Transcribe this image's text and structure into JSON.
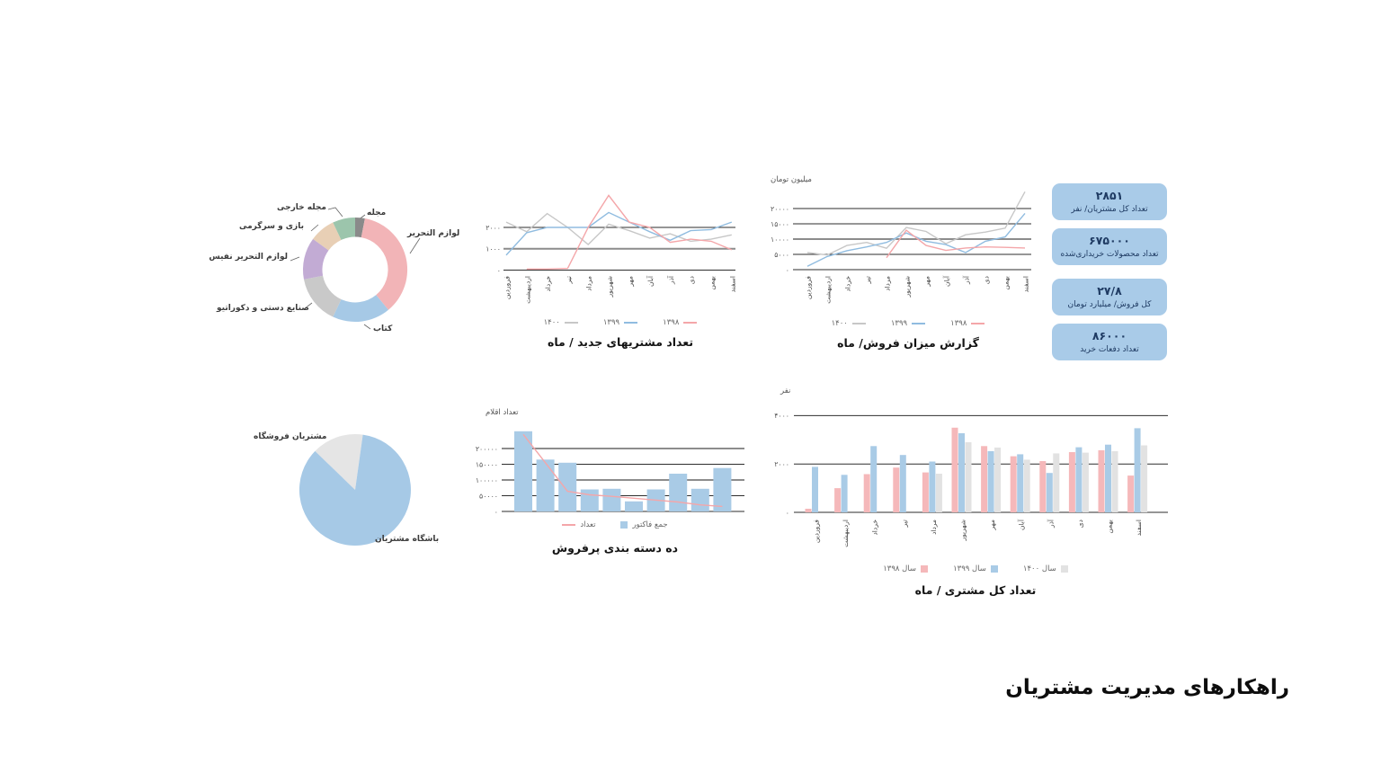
{
  "page": {
    "title": "راهکارهای مدیریت مشتریان"
  },
  "colors": {
    "grid": "#2e2e2e",
    "grid_soft": "#8c8c8c",
    "card_bg": "#a9cbe8",
    "card_text": "#1f3b63",
    "axis_text": "#555555"
  },
  "stat_cards": [
    {
      "value": "۲۸۵۱",
      "label": "تعداد کل مشتریان/ نفر"
    },
    {
      "value": "۶۷۵۰۰۰",
      "label": "تعداد محصولات خریداری‌شده"
    },
    {
      "value": "۲۷/۸",
      "label": "کل فروش/ میلیارد تومان"
    },
    {
      "value": "۸۶۰۰۰",
      "label": "تعداد دفعات خرید"
    }
  ],
  "chart_data": [
    {
      "id": "product-categories-donut",
      "type": "pie",
      "style": "donut",
      "labels": [
        "مجله",
        "لوازم التحریر",
        "کتاب",
        "صنایع دستی و دکوراتیو",
        "لوازم التحریر نفیس",
        "بازی و سرگرمی",
        "مجله خارجی"
      ],
      "values": [
        3,
        36,
        18,
        15,
        13,
        8,
        7
      ],
      "colors": [
        "#8a8a8a",
        "#f2b4b7",
        "#a6c9e6",
        "#c9c9c9",
        "#c2abd4",
        "#e8cfb5",
        "#9cc5ac"
      ],
      "start_angle": 0
    },
    {
      "id": "new-customers-per-month",
      "type": "line",
      "title": "تعداد مشتریهای جدید / ماه",
      "categories": [
        "فروردین",
        "اردیبهشت",
        "خرداد",
        "تیر",
        "مرداد",
        "شهریور",
        "مهر",
        "آبان",
        "آذر",
        "دی",
        "بهمن",
        "اسفند"
      ],
      "yticks": {
        "values": [
          0,
          1000,
          2000
        ],
        "labels": [
          "۰",
          "۱۰۰۰",
          "۲۰۰۰"
        ]
      },
      "ylim": [
        0,
        4000
      ],
      "series": [
        {
          "name": "۱۴۰۰",
          "color": "#c7c7c7",
          "values": [
            2250,
            1800,
            2650,
            2000,
            1200,
            2150,
            1850,
            1500,
            1700,
            1350,
            1450,
            1650
          ]
        },
        {
          "name": "۱۳۹۹",
          "color": "#90bce0",
          "values": [
            700,
            1750,
            2000,
            2000,
            2000,
            2700,
            2250,
            1800,
            1400,
            1850,
            1900,
            2250
          ]
        },
        {
          "name": "۱۳۹۸",
          "color": "#f4a6a9",
          "values": [
            null,
            50,
            50,
            80,
            2000,
            3500,
            2250,
            2000,
            1300,
            1450,
            1350,
            950
          ]
        }
      ]
    },
    {
      "id": "sales-per-month",
      "type": "line",
      "title": "گزارش میزان فروش/ ماه",
      "ylabel": "میلیون تومان",
      "categories": [
        "فروردین",
        "اردیبهشت",
        "خرداد",
        "تیر",
        "مرداد",
        "شهریور",
        "مهر",
        "آبان",
        "آذر",
        "دی",
        "بهمن",
        "اسفند"
      ],
      "yticks": {
        "values": [
          0,
          5000,
          10000,
          15000,
          20000
        ],
        "labels": [
          "۰",
          "۵۰۰۰",
          "۱۰۰۰۰",
          "۱۵۰۰۰",
          "۲۰۰۰۰"
        ]
      },
      "ylim": [
        0,
        27000
      ],
      "series": [
        {
          "name": "۱۴۰۰",
          "color": "#c7c7c7",
          "values": [
            5600,
            4800,
            7900,
            8900,
            7000,
            13800,
            12500,
            8500,
            11400,
            12300,
            13600,
            25500
          ]
        },
        {
          "name": "۱۳۹۹",
          "color": "#90bce0",
          "values": [
            1100,
            4300,
            6200,
            7450,
            8900,
            12000,
            9300,
            8200,
            5600,
            9300,
            10700,
            18400
          ]
        },
        {
          "name": "۱۳۹۸",
          "color": "#f4a6a9",
          "values": [
            null,
            null,
            null,
            null,
            3900,
            12900,
            7900,
            6300,
            7100,
            7450,
            7300,
            7100
          ]
        }
      ]
    },
    {
      "id": "customer-split-pie",
      "type": "pie",
      "labels": [
        "مشتریان فروشگاه",
        "باشگاه مشتریان"
      ],
      "values": [
        15,
        85
      ],
      "colors": [
        "#e5e5e5",
        "#a6c9e6"
      ],
      "start_angle": -46
    },
    {
      "id": "top-ten-categories",
      "type": "bar-line",
      "title": "ده دسته بندی پرفروش",
      "ylabel": "تعداد اقلام",
      "yticks": {
        "values": [
          0,
          50000,
          100000,
          150000,
          200000
        ],
        "labels": [
          "۰",
          "۵۰۰۰۰",
          "۱۰۰۰۰۰",
          "۱۵۰۰۰۰",
          "۲۰۰۰۰۰"
        ]
      },
      "ylim": [
        0,
        290000
      ],
      "bar_series": {
        "name": "جمع فاکتور",
        "color": "#a9cbe6",
        "values": [
          255000,
          165000,
          155000,
          70000,
          72000,
          32000,
          70000,
          120000,
          72000,
          138000
        ]
      },
      "line_series": {
        "name": "تعداد",
        "color": "#f4a6a9",
        "values": [
          245000,
          155000,
          64000,
          53000,
          48000,
          42000,
          36000,
          30000,
          21000,
          16000
        ]
      }
    },
    {
      "id": "total-customers-per-month",
      "type": "grouped-bar",
      "title": "تعداد کل مشتری / ماه",
      "ylabel": "نفر",
      "categories": [
        "فروردین",
        "اردیبهشت",
        "خرداد",
        "تیر",
        "مرداد",
        "شهریور",
        "مهر",
        "آبان",
        "آذر",
        "دی",
        "بهمن",
        "اسفند"
      ],
      "yticks": {
        "values": [
          0,
          2000,
          4000
        ],
        "labels": [
          "۰",
          "۲۰۰۰",
          "۴۰۰۰"
        ]
      },
      "ylim": [
        0,
        4300
      ],
      "series": [
        {
          "name": "سال ۱۳۹۸",
          "color": "#f5b8ba",
          "values": [
            150,
            1000,
            1580,
            1850,
            1650,
            3500,
            2740,
            2320,
            2120,
            2490,
            2570,
            1520
          ]
        },
        {
          "name": "سال ۱۳۹۹",
          "color": "#a9cbe6",
          "values": [
            1880,
            1550,
            2740,
            2370,
            2100,
            3270,
            2530,
            2400,
            1630,
            2690,
            2800,
            3480
          ]
        },
        {
          "name": "سال ۱۴۰۰",
          "color": "#e2e2e2",
          "values": [
            null,
            null,
            null,
            null,
            1600,
            2900,
            2680,
            2180,
            2440,
            2470,
            2530,
            2770
          ]
        }
      ]
    }
  ]
}
